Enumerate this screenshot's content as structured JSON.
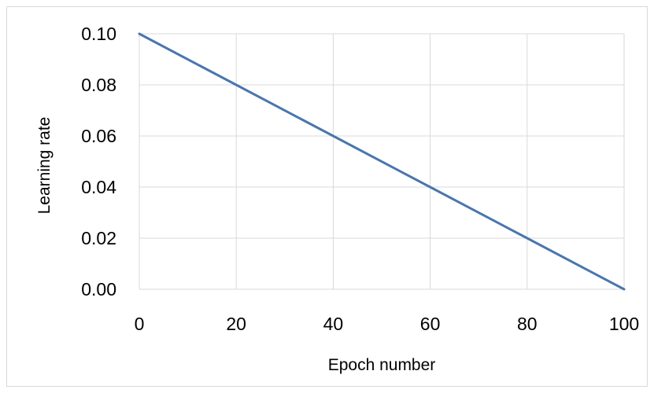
{
  "chart_data": {
    "type": "line",
    "title": "",
    "xlabel": "Epoch number",
    "ylabel": "Learning rate",
    "xlim": [
      0,
      100
    ],
    "ylim": [
      0,
      0.1
    ],
    "x_ticks": [
      "0",
      "20",
      "40",
      "60",
      "80",
      "100"
    ],
    "y_ticks": [
      "0.00",
      "0.02",
      "0.04",
      "0.06",
      "0.08",
      "0.10"
    ],
    "grid": true,
    "legend": "none",
    "series": [
      {
        "x": [
          0,
          20,
          40,
          60,
          80,
          100
        ],
        "values": [
          0.1,
          0.08,
          0.06,
          0.04,
          0.02,
          0.0
        ],
        "color": "#4a76ad"
      }
    ]
  }
}
